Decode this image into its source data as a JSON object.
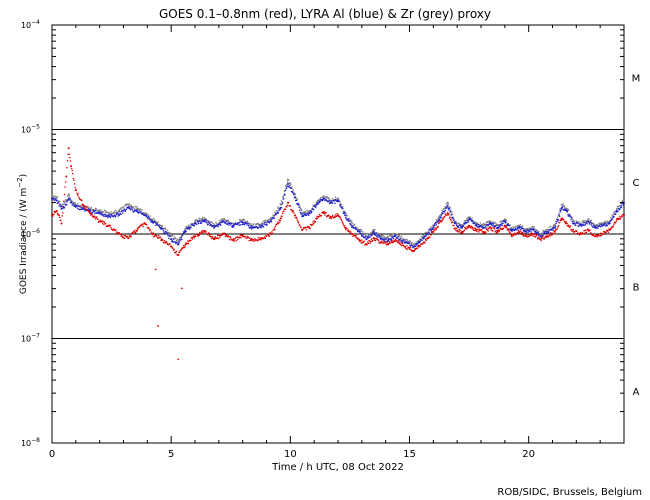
{
  "chart_data": {
    "type": "scatter",
    "title": "GOES 0.1–0.8nm (red), LYRA Al (blue) & Zr (grey) proxy",
    "xlabel": "Time / h UTC, 08 Oct 2022",
    "ylabel_prefix": "GOES Irradiance / (W m",
    "ylabel_exp": "−2",
    "ylabel_suffix": ")",
    "credit": "ROB/SIDC, Brussels, Belgium",
    "xlim": [
      0,
      24
    ],
    "ylim_log10": [
      -8,
      -4
    ],
    "x_ticks": [
      {
        "value": 0,
        "label": "0"
      },
      {
        "value": 5,
        "label": "5"
      },
      {
        "value": 10,
        "label": "10"
      },
      {
        "value": 15,
        "label": "15"
      },
      {
        "value": 20,
        "label": "20"
      }
    ],
    "y_ticks": [
      {
        "exp": -8,
        "base": "10",
        "sup": "−8"
      },
      {
        "exp": -7,
        "base": "10",
        "sup": "−7"
      },
      {
        "exp": -6,
        "base": "10",
        "sup": "−6"
      },
      {
        "exp": -5,
        "base": "10",
        "sup": "−5"
      },
      {
        "exp": -4,
        "base": "10",
        "sup": "−4"
      }
    ],
    "flare_class_lines_log10": [
      -7,
      -6,
      -5
    ],
    "flare_classes": [
      {
        "label": "A",
        "log10_center": -7.5
      },
      {
        "label": "B",
        "log10_center": -6.5
      },
      {
        "label": "C",
        "log10_center": -5.5
      },
      {
        "label": "M",
        "log10_center": -4.5
      }
    ],
    "series": [
      {
        "name": "LYRA Zr proxy",
        "color": "#808080",
        "x": [
          0.0,
          0.2,
          0.4,
          0.6,
          0.7,
          0.8,
          1.0,
          1.3,
          1.6,
          2.0,
          2.4,
          2.8,
          3.2,
          3.6,
          3.9,
          4.2,
          4.6,
          5.0,
          5.3,
          5.6,
          6.0,
          6.4,
          6.8,
          7.2,
          7.6,
          8.0,
          8.4,
          8.8,
          9.2,
          9.6,
          9.9,
          10.2,
          10.5,
          10.8,
          11.1,
          11.4,
          11.7,
          12.0,
          12.3,
          12.6,
          12.9,
          13.2,
          13.5,
          13.8,
          14.1,
          14.4,
          14.8,
          15.2,
          15.6,
          16.0,
          16.3,
          16.6,
          16.9,
          17.2,
          17.5,
          17.8,
          18.1,
          18.4,
          18.7,
          19.0,
          19.3,
          19.6,
          19.9,
          20.2,
          20.5,
          20.8,
          21.1,
          21.4,
          21.6,
          21.9,
          22.2,
          22.5,
          22.8,
          23.1,
          23.4,
          23.7,
          24.0
        ],
        "log10_y": [
          -5.63,
          -5.65,
          -5.73,
          -5.68,
          -5.62,
          -5.68,
          -5.72,
          -5.74,
          -5.76,
          -5.78,
          -5.8,
          -5.78,
          -5.72,
          -5.76,
          -5.8,
          -5.86,
          -5.92,
          -6.02,
          -6.07,
          -5.95,
          -5.88,
          -5.85,
          -5.92,
          -5.86,
          -5.9,
          -5.87,
          -5.92,
          -5.9,
          -5.86,
          -5.72,
          -5.48,
          -5.62,
          -5.8,
          -5.78,
          -5.7,
          -5.64,
          -5.68,
          -5.66,
          -5.8,
          -5.9,
          -5.96,
          -6.02,
          -5.96,
          -6.02,
          -6.04,
          -6.0,
          -6.06,
          -6.1,
          -6.02,
          -5.92,
          -5.82,
          -5.7,
          -5.88,
          -5.92,
          -5.84,
          -5.9,
          -5.92,
          -5.88,
          -5.92,
          -5.86,
          -5.95,
          -5.92,
          -5.96,
          -5.94,
          -6.0,
          -5.96,
          -5.92,
          -5.72,
          -5.76,
          -5.88,
          -5.9,
          -5.86,
          -5.92,
          -5.9,
          -5.88,
          -5.76,
          -5.68
        ]
      },
      {
        "name": "LYRA Al proxy",
        "color": "#1f1fd0",
        "x": [
          0.0,
          0.2,
          0.4,
          0.6,
          0.7,
          0.8,
          1.0,
          1.3,
          1.6,
          2.0,
          2.4,
          2.8,
          3.2,
          3.6,
          3.9,
          4.2,
          4.6,
          5.0,
          5.3,
          5.6,
          6.0,
          6.4,
          6.8,
          7.2,
          7.6,
          8.0,
          8.4,
          8.8,
          9.2,
          9.6,
          9.9,
          10.2,
          10.5,
          10.8,
          11.1,
          11.4,
          11.7,
          12.0,
          12.3,
          12.6,
          12.9,
          13.2,
          13.5,
          13.8,
          14.1,
          14.4,
          14.8,
          15.2,
          15.6,
          16.0,
          16.3,
          16.6,
          16.9,
          17.2,
          17.5,
          17.8,
          18.1,
          18.4,
          18.7,
          19.0,
          19.3,
          19.6,
          19.9,
          20.2,
          20.5,
          20.8,
          21.1,
          21.4,
          21.6,
          21.9,
          22.2,
          22.5,
          22.8,
          23.1,
          23.4,
          23.7,
          24.0
        ],
        "log10_y": [
          -5.66,
          -5.68,
          -5.76,
          -5.72,
          -5.66,
          -5.7,
          -5.74,
          -5.76,
          -5.78,
          -5.8,
          -5.83,
          -5.81,
          -5.75,
          -5.79,
          -5.82,
          -5.88,
          -5.95,
          -6.05,
          -6.1,
          -5.97,
          -5.9,
          -5.87,
          -5.94,
          -5.88,
          -5.92,
          -5.89,
          -5.94,
          -5.92,
          -5.88,
          -5.75,
          -5.52,
          -5.65,
          -5.83,
          -5.8,
          -5.72,
          -5.66,
          -5.7,
          -5.68,
          -5.82,
          -5.93,
          -5.98,
          -6.05,
          -5.98,
          -6.04,
          -6.06,
          -6.02,
          -6.08,
          -6.12,
          -6.04,
          -5.94,
          -5.84,
          -5.73,
          -5.9,
          -5.94,
          -5.86,
          -5.92,
          -5.94,
          -5.9,
          -5.94,
          -5.88,
          -5.97,
          -5.94,
          -5.98,
          -5.96,
          -6.02,
          -5.98,
          -5.94,
          -5.75,
          -5.78,
          -5.9,
          -5.92,
          -5.88,
          -5.94,
          -5.92,
          -5.9,
          -5.78,
          -5.7
        ]
      },
      {
        "name": "GOES 0.1-0.8nm",
        "color": "#e00000",
        "x": [
          0.0,
          0.2,
          0.4,
          0.6,
          0.7,
          0.8,
          1.0,
          1.3,
          1.6,
          2.0,
          2.4,
          2.8,
          3.2,
          3.6,
          3.9,
          4.2,
          4.6,
          5.0,
          5.3,
          5.6,
          6.0,
          6.4,
          6.8,
          7.2,
          7.6,
          8.0,
          8.4,
          8.8,
          9.2,
          9.6,
          9.9,
          10.2,
          10.5,
          10.8,
          11.1,
          11.4,
          11.7,
          12.0,
          12.3,
          12.6,
          12.9,
          13.2,
          13.5,
          13.8,
          14.1,
          14.4,
          14.8,
          15.2,
          15.6,
          16.0,
          16.3,
          16.6,
          16.9,
          17.2,
          17.5,
          17.8,
          18.1,
          18.4,
          18.7,
          19.0,
          19.3,
          19.6,
          19.9,
          20.2,
          20.5,
          20.8,
          21.1,
          21.4,
          21.6,
          21.9,
          22.2,
          22.5,
          22.8,
          23.1,
          23.4,
          23.7,
          24.0
        ],
        "log10_y": [
          -5.82,
          -5.78,
          -5.9,
          -5.45,
          -5.18,
          -5.35,
          -5.58,
          -5.72,
          -5.8,
          -5.88,
          -5.92,
          -6.0,
          -6.04,
          -5.95,
          -5.9,
          -6.0,
          -6.05,
          -6.12,
          -6.2,
          -6.1,
          -6.02,
          -5.97,
          -6.05,
          -6.0,
          -6.06,
          -6.02,
          -6.06,
          -6.04,
          -6.0,
          -5.85,
          -5.7,
          -5.82,
          -5.96,
          -5.94,
          -5.85,
          -5.8,
          -5.84,
          -5.82,
          -5.94,
          -6.0,
          -6.06,
          -6.1,
          -6.04,
          -6.08,
          -6.1,
          -6.06,
          -6.12,
          -6.16,
          -6.08,
          -5.98,
          -5.88,
          -5.8,
          -5.95,
          -5.98,
          -5.92,
          -5.96,
          -5.98,
          -5.94,
          -5.98,
          -5.92,
          -6.02,
          -5.98,
          -6.02,
          -6.0,
          -6.05,
          -6.02,
          -5.98,
          -5.85,
          -5.9,
          -5.98,
          -6.0,
          -5.96,
          -6.02,
          -6.0,
          -5.96,
          -5.86,
          -5.82
        ]
      },
      {
        "name": "GOES isolated low points",
        "color": "#e00000",
        "x": [
          4.35,
          4.45,
          5.3,
          5.45
        ],
        "log10_y": [
          -6.34,
          -6.88,
          -7.2,
          -6.52
        ]
      }
    ]
  }
}
